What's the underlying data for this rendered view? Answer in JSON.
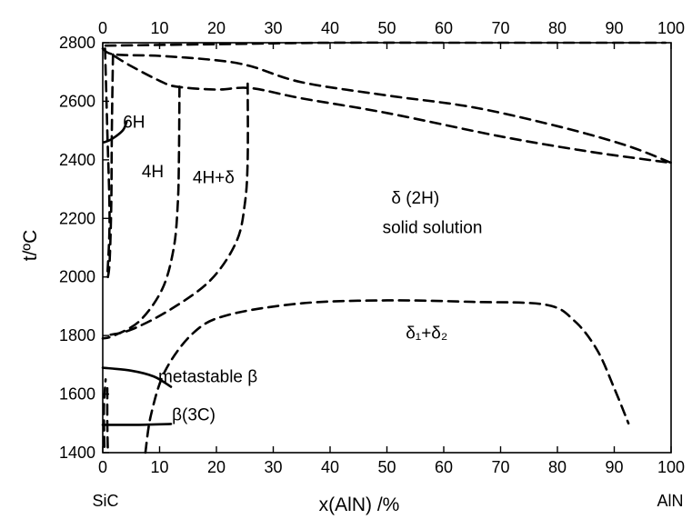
{
  "chart_data": {
    "type": "line",
    "title": "",
    "xlabel": "x(AlN) /%",
    "ylabel": "t/ºC",
    "xlim": [
      0,
      100
    ],
    "ylim": [
      1400,
      2800
    ],
    "x_ticks": [
      "0",
      "10",
      "20",
      "30",
      "40",
      "50",
      "60",
      "70",
      "80",
      "90",
      "100"
    ],
    "y_ticks": [
      "1400",
      "1600",
      "1800",
      "2000",
      "2200",
      "2400",
      "2600",
      "2800"
    ],
    "x_left_end_label": "SiC",
    "x_right_end_label": "AlN",
    "grid": false,
    "regions": [
      {
        "text": "6H",
        "x": 5.5,
        "y": 2510
      },
      {
        "text": "4H",
        "x": 8.8,
        "y": 2340
      },
      {
        "text": "4H+δ",
        "x": 19.5,
        "y": 2320
      },
      {
        "text": "δ (2H)",
        "x": 55,
        "y": 2250
      },
      {
        "text": "solid solution",
        "x": 58,
        "y": 2150
      },
      {
        "text": "δ₁+δ₂",
        "x": 57,
        "y": 1790
      },
      {
        "text": "metastable β",
        "x": 18.5,
        "y": 1640
      },
      {
        "text": "β(3C)",
        "x": 16,
        "y": 1510
      }
    ],
    "series": [
      {
        "style": "dashed",
        "points": [
          [
            0.5,
            2790
          ],
          [
            20,
            2795
          ],
          [
            40,
            2800
          ],
          [
            60,
            2800
          ],
          [
            80,
            2800
          ],
          [
            99,
            2800
          ]
        ]
      },
      {
        "style": "dashed",
        "points": [
          [
            0,
            2780
          ],
          [
            2,
            2760
          ],
          [
            10,
            2755
          ],
          [
            20,
            2740
          ],
          [
            26,
            2720
          ],
          [
            35,
            2665
          ],
          [
            50,
            2620
          ],
          [
            65,
            2580
          ],
          [
            80,
            2515
          ],
          [
            92,
            2450
          ],
          [
            100,
            2390
          ]
        ]
      },
      {
        "style": "dashed",
        "points": [
          [
            2,
            2755
          ],
          [
            5,
            2720
          ],
          [
            10,
            2670
          ],
          [
            13,
            2650
          ],
          [
            20,
            2640
          ],
          [
            26,
            2645
          ],
          [
            35,
            2610
          ],
          [
            50,
            2560
          ],
          [
            70,
            2480
          ],
          [
            85,
            2430
          ],
          [
            96,
            2400
          ],
          [
            100,
            2390
          ]
        ]
      },
      {
        "style": "dashed",
        "points": [
          [
            0.4,
            2780
          ],
          [
            0.8,
            2500
          ],
          [
            1.2,
            2200
          ],
          [
            0.8,
            2000
          ]
        ]
      },
      {
        "style": "dashed",
        "points": [
          [
            1.8,
            2760
          ],
          [
            1.6,
            2500
          ],
          [
            1.5,
            2250
          ],
          [
            1.2,
            2050
          ],
          [
            0.8,
            1990
          ]
        ]
      },
      {
        "style": "dashed",
        "points": [
          [
            13.5,
            2650
          ],
          [
            13.4,
            2400
          ],
          [
            13.2,
            2250
          ],
          [
            12.5,
            2100
          ],
          [
            10.5,
            1960
          ],
          [
            6.5,
            1850
          ],
          [
            2,
            1800
          ],
          [
            0,
            1790
          ]
        ]
      },
      {
        "style": "dashed",
        "points": [
          [
            25.5,
            2660
          ],
          [
            25.5,
            2400
          ],
          [
            25,
            2250
          ],
          [
            23.5,
            2120
          ],
          [
            19,
            1990
          ],
          [
            12,
            1890
          ],
          [
            5,
            1820
          ],
          [
            0.5,
            1800
          ]
        ]
      },
      {
        "style": "dashed",
        "points": [
          [
            7.5,
            1400
          ],
          [
            8.5,
            1530
          ],
          [
            11,
            1680
          ],
          [
            16,
            1810
          ],
          [
            22,
            1870
          ],
          [
            35,
            1910
          ],
          [
            50,
            1920
          ],
          [
            65,
            1915
          ],
          [
            78,
            1905
          ],
          [
            83,
            1850
          ],
          [
            87,
            1750
          ],
          [
            90,
            1620
          ],
          [
            92.5,
            1500
          ]
        ]
      },
      {
        "style": "dashed",
        "points": [
          [
            0.3,
            1420
          ],
          [
            0.2,
            1550
          ],
          [
            0.5,
            1650
          ]
        ]
      },
      {
        "style": "dashed",
        "points": [
          [
            0.8,
            1620
          ],
          [
            0.8,
            1500
          ],
          [
            0.9,
            1400
          ]
        ]
      },
      {
        "style": "solid",
        "points": [
          [
            0,
            1690
          ],
          [
            5,
            1680
          ],
          [
            9,
            1660
          ],
          [
            12,
            1625
          ]
        ]
      },
      {
        "style": "solid",
        "points": [
          [
            0,
            1495
          ],
          [
            6,
            1495
          ],
          [
            12,
            1498
          ]
        ]
      },
      {
        "style": "solid",
        "points": [
          [
            0.2,
            2460
          ],
          [
            1.5,
            2470
          ],
          [
            3.5,
            2500
          ],
          [
            4.2,
            2530
          ]
        ]
      }
    ]
  }
}
